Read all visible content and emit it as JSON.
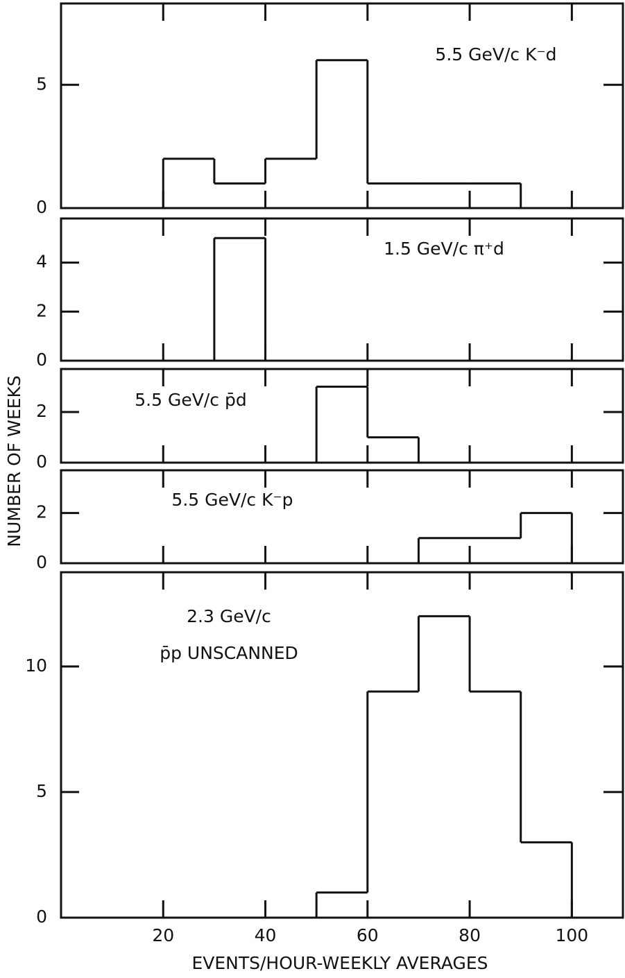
{
  "chart_data": [
    {
      "type": "histogram",
      "title": "5.5 GeV/c K⁻d",
      "bins": [
        20,
        30,
        40,
        50,
        60,
        70,
        80,
        90
      ],
      "counts": [
        2,
        1,
        2,
        6,
        1,
        1,
        1
      ],
      "ylim": [
        0,
        8.3
      ],
      "yticks": [
        0,
        5
      ]
    },
    {
      "type": "histogram",
      "title": "1.5 GeV/c π⁺d",
      "bins": [
        30,
        40
      ],
      "counts": [
        5
      ],
      "ylim": [
        0,
        5.8
      ],
      "yticks": [
        0,
        2,
        4
      ]
    },
    {
      "type": "histogram",
      "title": "5.5 GeV/c p̄d",
      "bins": [
        50,
        60,
        70
      ],
      "counts": [
        3,
        1
      ],
      "ylim": [
        0,
        3.7
      ],
      "yticks": [
        0,
        2
      ]
    },
    {
      "type": "histogram",
      "title": "5.5 GeV/c K⁻p",
      "bins": [
        70,
        80,
        90,
        100
      ],
      "counts": [
        1,
        1,
        2
      ],
      "ylim": [
        0,
        3.7
      ],
      "yticks": [
        0,
        2
      ]
    },
    {
      "type": "histogram",
      "title": [
        "2.3 GeV/c",
        "p̄p UNSCANNED"
      ],
      "bins": [
        50,
        60,
        70,
        80,
        90,
        100
      ],
      "counts": [
        1,
        9,
        12,
        9,
        3
      ],
      "ylim": [
        0,
        13.75
      ],
      "yticks": [
        0,
        5,
        10
      ]
    }
  ],
  "shared_x": {
    "xlim": [
      0,
      110
    ],
    "xticks": [
      20,
      40,
      60,
      80,
      100
    ],
    "xlabel": "EVENTS/HOUR-WEEKLY AVERAGES"
  },
  "ylabel": "NUMBER OF WEEKS"
}
